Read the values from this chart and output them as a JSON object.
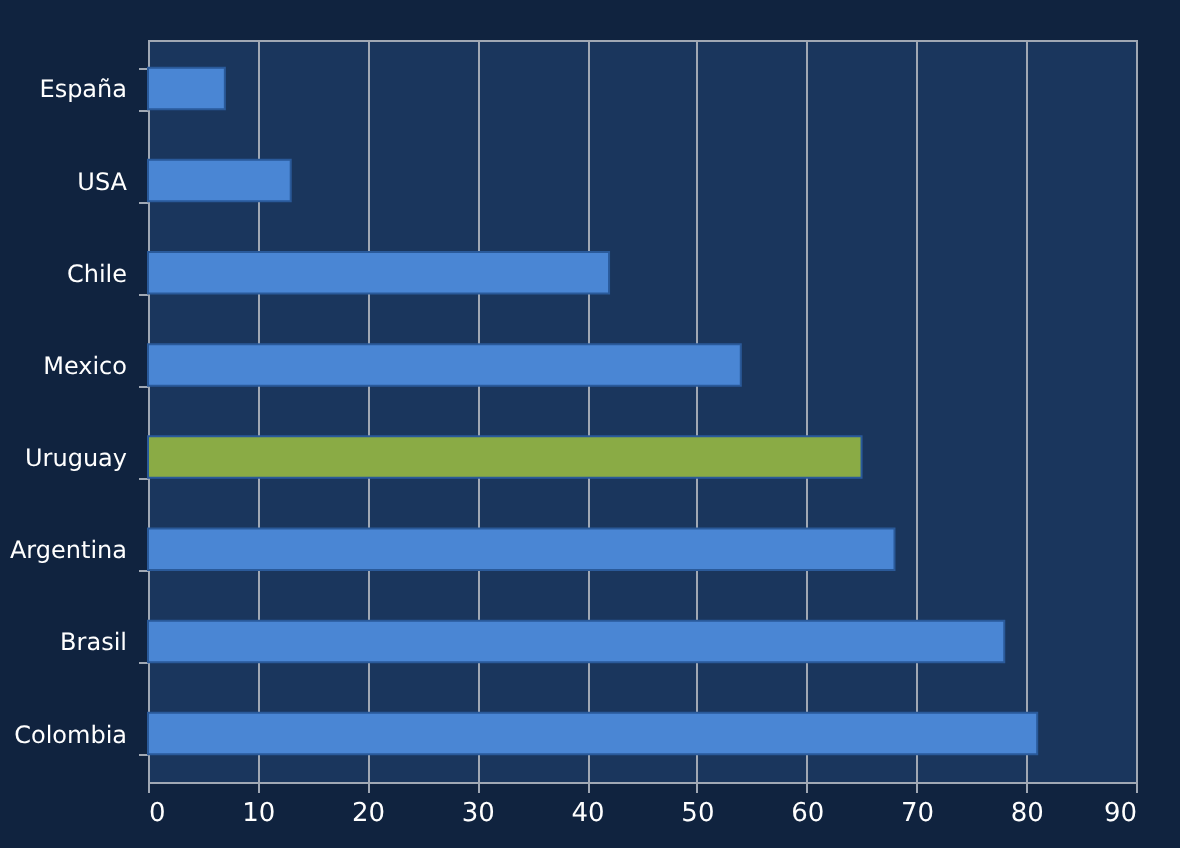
{
  "chart_data": {
    "type": "bar",
    "orientation": "horizontal",
    "categories": [
      "España",
      "USA",
      "Chile",
      "Mexico",
      "Uruguay",
      "Argentina",
      "Brasil",
      "Colombia"
    ],
    "values": [
      7,
      13,
      42,
      54,
      65,
      68,
      78,
      81
    ],
    "colors": [
      "#4a86d4",
      "#4a86d4",
      "#4a86d4",
      "#4a86d4",
      "#8aab45",
      "#4a86d4",
      "#4a86d4",
      "#4a86d4"
    ],
    "xlim": [
      0,
      90
    ],
    "xticks": [
      0,
      10,
      20,
      30,
      40,
      50,
      60,
      70,
      80,
      90
    ],
    "grid": "x"
  }
}
